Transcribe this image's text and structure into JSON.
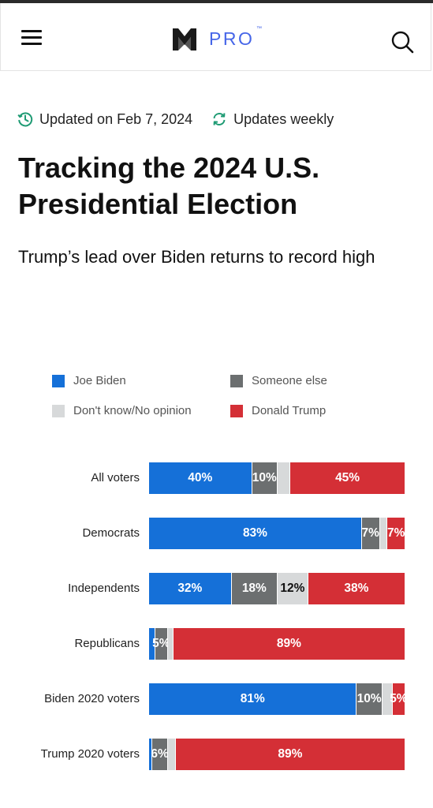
{
  "header": {
    "brand_text": "PRO",
    "brand_tm": "™"
  },
  "meta": {
    "updated": "Updated on Feb 7, 2024",
    "frequency": "Updates weekly"
  },
  "article": {
    "title": "Tracking the 2024 U.S. Presidential Election",
    "subtitle": "Trump’s lead over Biden returns to record high"
  },
  "colors": {
    "biden": "#1570d8",
    "someone_else": "#6c6f70",
    "dont_know": "#d7d9da",
    "trump": "#d42f36",
    "brand": "#4666e8",
    "accent_green": "#1f9b74"
  },
  "legend": [
    {
      "label": "Joe Biden",
      "color": "#1570d8"
    },
    {
      "label": "Someone else",
      "color": "#6c6f70"
    },
    {
      "label": "Don't know/No opinion",
      "color": "#d7d9da"
    },
    {
      "label": "Donald Trump",
      "color": "#d42f36"
    }
  ],
  "chart_data": {
    "type": "bar",
    "orientation": "horizontal",
    "stacked": true,
    "legend_position": "top",
    "categories": [
      "All voters",
      "Democrats",
      "Independents",
      "Republicans",
      "Biden 2020 voters",
      "Trump 2020 voters"
    ],
    "series": [
      {
        "name": "Joe Biden",
        "color": "#1570d8",
        "values": [
          40,
          83,
          32,
          2,
          81,
          1
        ],
        "labels": [
          "40%",
          "83%",
          "32%",
          "",
          "81%",
          ""
        ]
      },
      {
        "name": "Someone else",
        "color": "#6c6f70",
        "values": [
          10,
          7,
          18,
          5,
          10,
          6
        ],
        "labels": [
          "10%",
          "7%",
          "18%",
          "5%",
          "10%",
          "6%"
        ]
      },
      {
        "name": "Don't know/No opinion",
        "color": "#d7d9da",
        "values": [
          5,
          3,
          12,
          2,
          4,
          3
        ],
        "labels": [
          "",
          "",
          "12%",
          "",
          "",
          ""
        ]
      },
      {
        "name": "Donald Trump",
        "color": "#d42f36",
        "values": [
          45,
          7,
          38,
          89,
          5,
          89
        ],
        "labels": [
          "45%",
          "7%",
          "38%",
          "89%",
          "5%",
          "89%"
        ]
      }
    ]
  }
}
